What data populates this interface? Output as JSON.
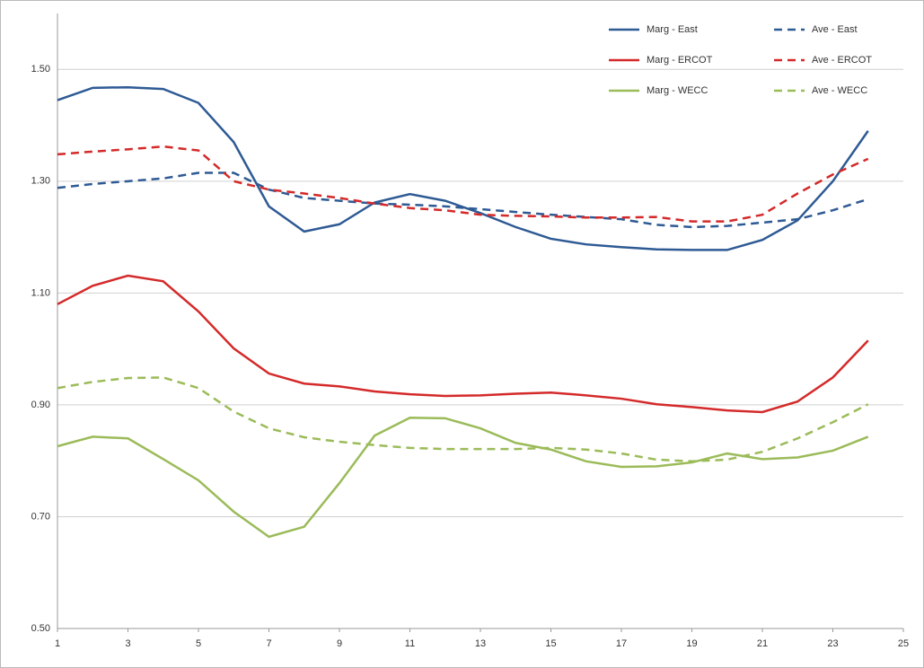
{
  "chart_data": {
    "type": "line",
    "x": [
      1,
      2,
      3,
      4,
      5,
      6,
      7,
      8,
      9,
      10,
      11,
      12,
      13,
      14,
      15,
      16,
      17,
      18,
      19,
      20,
      21,
      22,
      23,
      24
    ],
    "xlim": [
      1,
      25
    ],
    "xticks": [
      1,
      3,
      5,
      7,
      9,
      11,
      13,
      15,
      17,
      19,
      21,
      23,
      25
    ],
    "ylim": [
      0.5,
      1.6
    ],
    "yticks": [
      {
        "value": 0.5,
        "label": "0.50"
      },
      {
        "value": 0.7,
        "label": "0.70"
      },
      {
        "value": 0.9,
        "label": "0.90"
      },
      {
        "value": 1.1,
        "label": "1.10"
      },
      {
        "value": 1.3,
        "label": "1.30"
      },
      {
        "value": 1.5,
        "label": "1.50"
      }
    ],
    "grid": true,
    "legend": "top-right",
    "series": [
      {
        "name": "Marg - East",
        "color": "#2e5a94",
        "dashed": false,
        "values": [
          1.445,
          1.467,
          1.468,
          1.465,
          1.44,
          1.37,
          1.255,
          1.21,
          1.223,
          1.262,
          1.277,
          1.265,
          1.243,
          1.218,
          1.197,
          1.187,
          1.182,
          1.178,
          1.177,
          1.177,
          1.195,
          1.23,
          1.3,
          1.39
        ]
      },
      {
        "name": "Ave - East",
        "color": "#2e5a94",
        "dashed": true,
        "values": [
          1.288,
          1.295,
          1.3,
          1.305,
          1.315,
          1.315,
          1.285,
          1.27,
          1.265,
          1.26,
          1.258,
          1.255,
          1.25,
          1.245,
          1.24,
          1.236,
          1.232,
          1.222,
          1.218,
          1.22,
          1.226,
          1.232,
          1.248,
          1.268
        ]
      },
      {
        "name": "Marg - ERCOT",
        "color": "#d42a2a",
        "dashed": false,
        "values": [
          1.08,
          1.113,
          1.131,
          1.121,
          1.067,
          1.001,
          0.956,
          0.938,
          0.933,
          0.924,
          0.919,
          0.916,
          0.917,
          0.92,
          0.922,
          0.917,
          0.911,
          0.901,
          0.896,
          0.89,
          0.887,
          0.906,
          0.949,
          1.015
        ]
      },
      {
        "name": "Ave - ERCOT",
        "color": "#d42a2a",
        "dashed": true,
        "values": [
          1.348,
          1.353,
          1.357,
          1.362,
          1.355,
          1.3,
          1.285,
          1.278,
          1.27,
          1.26,
          1.252,
          1.248,
          1.24,
          1.238,
          1.237,
          1.235,
          1.235,
          1.236,
          1.228,
          1.228,
          1.24,
          1.278,
          1.312,
          1.34
        ]
      },
      {
        "name": "Marg - WECC",
        "color": "#9bbb59",
        "dashed": false,
        "values": [
          0.826,
          0.843,
          0.84,
          0.803,
          0.765,
          0.709,
          0.664,
          0.682,
          0.76,
          0.845,
          0.877,
          0.876,
          0.858,
          0.832,
          0.82,
          0.799,
          0.789,
          0.79,
          0.797,
          0.813,
          0.803,
          0.806,
          0.818,
          0.843
        ]
      },
      {
        "name": "Ave - WECC",
        "color": "#9bbb59",
        "dashed": true,
        "values": [
          0.93,
          0.941,
          0.948,
          0.949,
          0.93,
          0.888,
          0.858,
          0.842,
          0.834,
          0.828,
          0.823,
          0.821,
          0.821,
          0.821,
          0.823,
          0.82,
          0.813,
          0.802,
          0.799,
          0.802,
          0.816,
          0.84,
          0.869,
          0.901
        ]
      }
    ]
  }
}
